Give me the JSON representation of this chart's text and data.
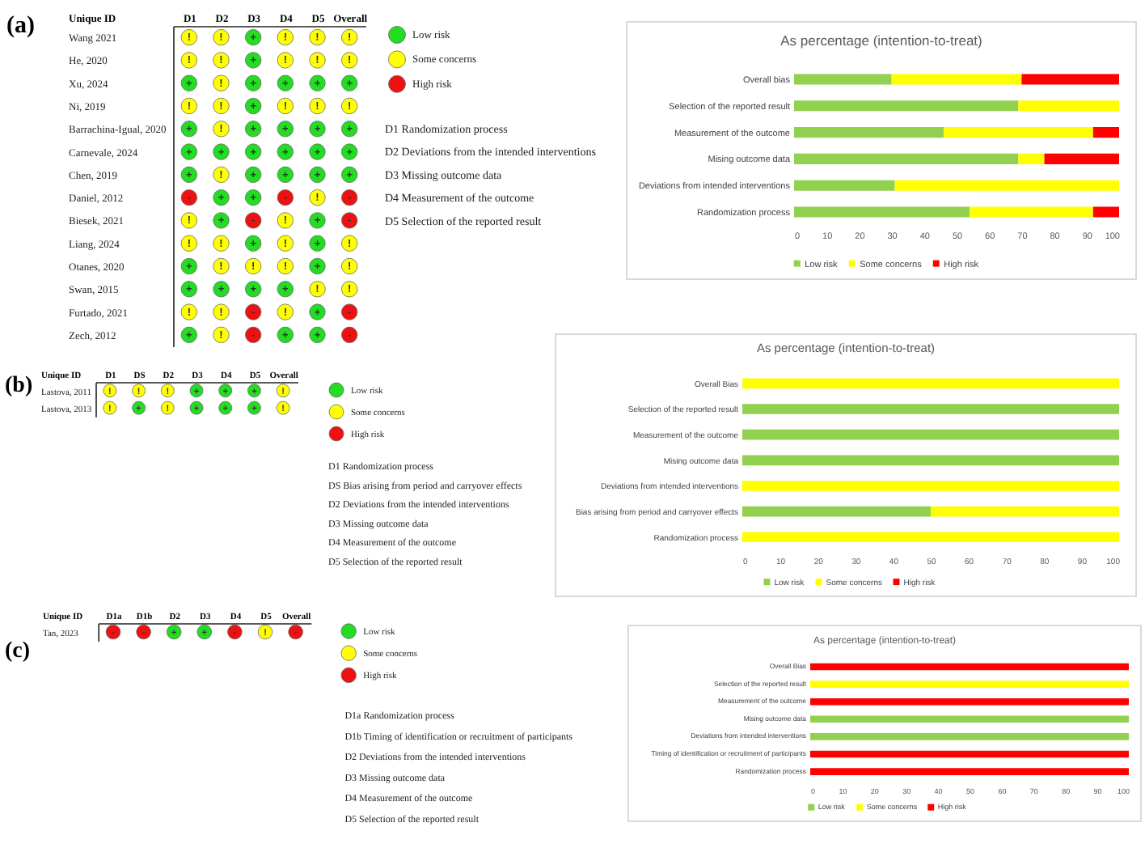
{
  "chart_data": [
    {
      "type": "other",
      "title": "(a)",
      "ylabel": "Unique ID",
      "categories": [
        "D1",
        "D2",
        "D3",
        "D4",
        "D5",
        "Overall"
      ],
      "y_categories": [
        "Wang 2021",
        "He, 2020",
        "Xu, 2024",
        "Ni, 2019",
        "Barrachina-Igual, 2020",
        "Carnevale, 2024",
        "Chen, 2019",
        "Daniel, 2012",
        "Biesek, 2021",
        "Liang, 2024",
        "Otanes, 2020",
        "Swan, 2015",
        "Furtado, 2021",
        "Zech, 2012"
      ],
      "cell_labels": [
        [
          "!",
          "!",
          "+",
          "!",
          "!",
          "!"
        ],
        [
          "!",
          "!",
          "+",
          "!",
          "!",
          "!"
        ],
        [
          "+",
          "!",
          "+",
          "+",
          "+",
          "+"
        ],
        [
          "!",
          "!",
          "+",
          "!",
          "!",
          "!"
        ],
        [
          "+",
          "!",
          "+",
          "+",
          "+",
          "+"
        ],
        [
          "+",
          "+",
          "+",
          "+",
          "+",
          "+"
        ],
        [
          "+",
          "!",
          "+",
          "+",
          "+",
          "+"
        ],
        [
          "-",
          "+",
          "+",
          "-",
          "!",
          "-"
        ],
        [
          "!",
          "+",
          "-",
          "!",
          "+",
          "-"
        ],
        [
          "!",
          "!",
          "+",
          "!",
          "+",
          "!"
        ],
        [
          "+",
          "!",
          "!",
          "!",
          "+",
          "!"
        ],
        [
          "+",
          "+",
          "+",
          "+",
          "!",
          "!"
        ],
        [
          "!",
          "!",
          "-",
          "!",
          "+",
          "-"
        ],
        [
          "+",
          "!",
          "-",
          "+",
          "+",
          "-"
        ]
      ],
      "colors": [
        [
          "#ffff00",
          "#ffff00",
          "#22dd22",
          "#ffff00",
          "#ffff00",
          "#ffff00"
        ],
        [
          "#ffff00",
          "#ffff00",
          "#22dd22",
          "#ffff00",
          "#ffff00",
          "#ffff00"
        ],
        [
          "#22dd22",
          "#ffff00",
          "#22dd22",
          "#22dd22",
          "#22dd22",
          "#22dd22"
        ],
        [
          "#ffff00",
          "#ffff00",
          "#22dd22",
          "#ffff00",
          "#ffff00",
          "#ffff00"
        ],
        [
          "#22dd22",
          "#ffff00",
          "#22dd22",
          "#22dd22",
          "#22dd22",
          "#22dd22"
        ],
        [
          "#22dd22",
          "#22dd22",
          "#22dd22",
          "#22dd22",
          "#22dd22",
          "#22dd22"
        ],
        [
          "#22dd22",
          "#ffff00",
          "#22dd22",
          "#22dd22",
          "#22dd22",
          "#22dd22"
        ],
        [
          "#ee1111",
          "#22dd22",
          "#22dd22",
          "#ee1111",
          "#ffff00",
          "#ee1111"
        ],
        [
          "#ffff00",
          "#22dd22",
          "#ee1111",
          "#ffff00",
          "#22dd22",
          "#ee1111"
        ],
        [
          "#ffff00",
          "#ffff00",
          "#22dd22",
          "#ffff00",
          "#22dd22",
          "#ffff00"
        ],
        [
          "#22dd22",
          "#ffff00",
          "#ffff00",
          "#ffff00",
          "#22dd22",
          "#ffff00"
        ],
        [
          "#22dd22",
          "#22dd22",
          "#22dd22",
          "#22dd22",
          "#ffff00",
          "#ffff00"
        ],
        [
          "#ffff00",
          "#ffff00",
          "#ee1111",
          "#ffff00",
          "#22dd22",
          "#ee1111"
        ],
        [
          "#22dd22",
          "#ffff00",
          "#ee1111",
          "#22dd22",
          "#22dd22",
          "#ee1111"
        ]
      ],
      "series": [
        {
          "name": "Low risk",
          "color": "#22dd22",
          "values": [
            null,
            null,
            null,
            null,
            null,
            null
          ]
        },
        {
          "name": "Some concerns",
          "color": "#ffff00",
          "values": [
            null,
            null,
            null,
            null,
            null,
            null
          ]
        },
        {
          "name": "High risk",
          "color": "#ee1111",
          "values": [
            null,
            null,
            null,
            null,
            null,
            null
          ]
        }
      ],
      "legend": "right",
      "annotations": [
        "D1 Randomization process",
        "D2 Deviations from the intended interventions",
        "D3 Missing outcome data",
        "D4 Measurement of the outcome",
        "D5 Selection of the reported result"
      ]
    },
    {
      "type": "bar",
      "orientation": "horizontal",
      "stacked": true,
      "title": "As percentage (intention-to-treat)",
      "categories": [
        "Overall bias",
        "Selection of the reported result",
        "Measurement of the outcome",
        "Mising outcome data",
        "Deviations from intended interventions",
        "Randomization process"
      ],
      "series": [
        {
          "name": "Low risk",
          "color": "#92d050",
          "values": [
            30,
            69,
            46,
            69,
            31,
            54
          ]
        },
        {
          "name": "Some concerns",
          "color": "#ffff00",
          "values": [
            40,
            31,
            46,
            8,
            69,
            38
          ]
        },
        {
          "name": "High risk",
          "color": "#ff0000",
          "values": [
            30,
            null,
            8,
            23,
            null,
            8
          ]
        }
      ],
      "xlim": [
        0,
        100
      ],
      "xticks": [
        0,
        10,
        20,
        30,
        40,
        50,
        60,
        70,
        80,
        90,
        100
      ],
      "legend": "bottom"
    },
    {
      "type": "other",
      "title": "(b)",
      "ylabel": "Unique ID",
      "categories": [
        "D1",
        "DS",
        "D2",
        "D3",
        "D4",
        "D5",
        "Overall"
      ],
      "y_categories": [
        "Lastova, 2011",
        "Lastova, 2013"
      ],
      "cell_labels": [
        [
          "!",
          "!",
          "!",
          "+",
          "+",
          "+",
          "!"
        ],
        [
          "!",
          "+",
          "!",
          "+",
          "+",
          "+",
          "!"
        ]
      ],
      "colors": [
        [
          "#ffff00",
          "#ffff00",
          "#ffff00",
          "#22dd22",
          "#22dd22",
          "#22dd22",
          "#ffff00"
        ],
        [
          "#ffff00",
          "#22dd22",
          "#ffff00",
          "#22dd22",
          "#22dd22",
          "#22dd22",
          "#ffff00"
        ]
      ],
      "series": [
        {
          "name": "Low risk",
          "color": "#22dd22",
          "values": [
            null,
            null,
            null,
            null,
            null,
            null,
            null
          ]
        },
        {
          "name": "Some concerns",
          "color": "#ffff00",
          "values": [
            null,
            null,
            null,
            null,
            null,
            null,
            null
          ]
        },
        {
          "name": "High risk",
          "color": "#ee1111",
          "values": [
            null,
            null,
            null,
            null,
            null,
            null,
            null
          ]
        }
      ],
      "legend": "right",
      "annotations": [
        "D1 Randomization process",
        "DS Bias arising from period and carryover effects",
        "D2 Deviations from the intended interventions",
        "D3 Missing outcome data",
        "D4 Measurement of the outcome",
        "D5 Selection of the reported result"
      ]
    },
    {
      "type": "bar",
      "orientation": "horizontal",
      "stacked": true,
      "title": "As percentage (intention-to-treat)",
      "categories": [
        "Overall Bias",
        "Selection of the reported result",
        "Measurement of the outcome",
        "Mising outcome data",
        "Deviations from intended interventions",
        "Bias arising from period and carryover effects",
        "Randomization process"
      ],
      "series": [
        {
          "name": "Low risk",
          "color": "#92d050",
          "values": [
            null,
            100,
            100,
            100,
            null,
            50,
            null
          ]
        },
        {
          "name": "Some concerns",
          "color": "#ffff00",
          "values": [
            100,
            null,
            null,
            null,
            100,
            50,
            100
          ]
        },
        {
          "name": "High risk",
          "color": "#ff0000",
          "values": [
            null,
            null,
            null,
            null,
            null,
            null,
            null
          ]
        }
      ],
      "xlim": [
        0,
        100
      ],
      "xticks": [
        0,
        10,
        20,
        30,
        40,
        50,
        60,
        70,
        80,
        90,
        100
      ],
      "legend": "bottom"
    },
    {
      "type": "other",
      "title": "(c)",
      "ylabel": "Unique ID",
      "categories": [
        "D1a",
        "D1b",
        "D2",
        "D3",
        "D4",
        "D5",
        "Overall"
      ],
      "y_categories": [
        "Tan, 2023"
      ],
      "cell_labels": [
        [
          "-",
          "-",
          "+",
          "+",
          "-",
          "!",
          "-"
        ]
      ],
      "colors": [
        [
          "#ee1111",
          "#ee1111",
          "#22dd22",
          "#22dd22",
          "#ee1111",
          "#ffff00",
          "#ee1111"
        ]
      ],
      "series": [
        {
          "name": "Low risk",
          "color": "#22dd22",
          "values": [
            null,
            null,
            null,
            null,
            null,
            null,
            null
          ]
        },
        {
          "name": "Some concerns",
          "color": "#ffff00",
          "values": [
            null,
            null,
            null,
            null,
            null,
            null,
            null
          ]
        },
        {
          "name": "High risk",
          "color": "#ee1111",
          "values": [
            null,
            null,
            null,
            null,
            null,
            null,
            null
          ]
        }
      ],
      "legend": "right",
      "annotations": [
        "D1a Randomization process",
        "D1b Timing of identification or recruitment of participants",
        "D2 Deviations from the intended interventions",
        "D3 Missing outcome data",
        "D4 Measurement of the outcome",
        "D5 Selection of the reported result"
      ]
    },
    {
      "type": "bar",
      "orientation": "horizontal",
      "stacked": true,
      "title": "As percentage (intention-to-treat)",
      "categories": [
        "Overall Bias",
        "Selection of the reported result",
        "Measurement of the outcome",
        "Mising outcome data",
        "Deviations from intended interventions",
        "Timing of identification or recruitment of participants",
        "Randomization process"
      ],
      "series": [
        {
          "name": "Low risk",
          "color": "#92d050",
          "values": [
            null,
            null,
            null,
            100,
            100,
            null,
            null
          ]
        },
        {
          "name": "Some concerns",
          "color": "#ffff00",
          "values": [
            null,
            100,
            null,
            null,
            null,
            null,
            null
          ]
        },
        {
          "name": "High risk",
          "color": "#ff0000",
          "values": [
            100,
            null,
            100,
            null,
            null,
            100,
            100
          ]
        }
      ],
      "xlim": [
        0,
        100
      ],
      "xticks": [
        0,
        10,
        20,
        30,
        40,
        50,
        60,
        70,
        80,
        90,
        100
      ],
      "legend": "bottom"
    }
  ]
}
